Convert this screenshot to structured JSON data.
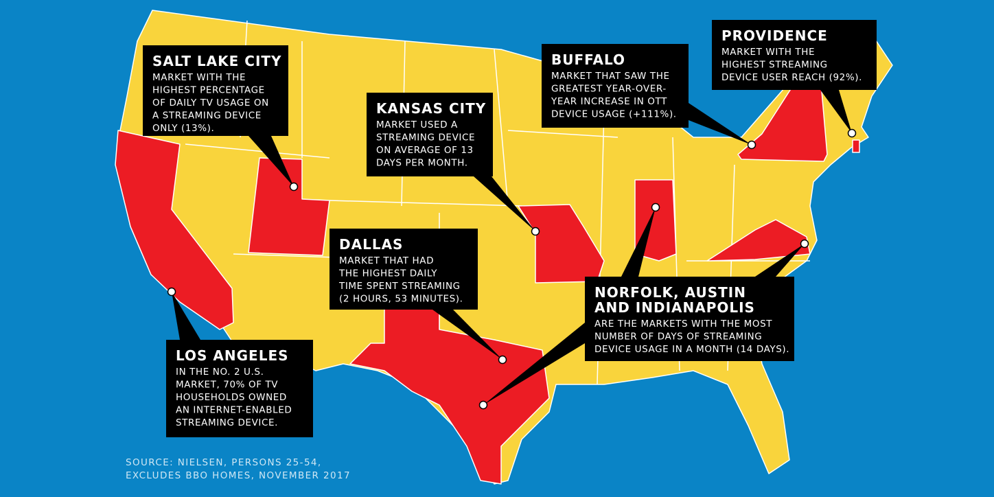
{
  "callouts": [
    {
      "title": [
        "SALT LAKE CITY"
      ],
      "lines": [
        "MARKET WITH THE",
        "HIGHEST PERCENTAGE",
        "OF DAILY TV USAGE ON",
        "A STREAMING DEVICE",
        "ONLY (13%)."
      ]
    },
    {
      "title": [
        "KANSAS CITY"
      ],
      "lines": [
        "MARKET USED A",
        "STREAMING DEVICE",
        "ON AVERAGE OF 13",
        "DAYS PER MONTH."
      ]
    },
    {
      "title": [
        "BUFFALO"
      ],
      "lines": [
        "MARKET THAT SAW THE",
        "GREATEST YEAR-OVER-",
        "YEAR INCREASE IN OTT",
        "DEVICE USAGE (+111%)."
      ]
    },
    {
      "title": [
        "PROVIDENCE"
      ],
      "lines": [
        "MARKET WITH THE",
        "HIGHEST STREAMING",
        "DEVICE USER REACH (92%)."
      ]
    },
    {
      "title": [
        "DALLAS"
      ],
      "lines": [
        "MARKET THAT HAD",
        "THE HIGHEST DAILY",
        "TIME SPENT STREAMING",
        "(2 HOURS, 53 MINUTES)."
      ]
    },
    {
      "title": [
        "LOS ANGELES"
      ],
      "lines": [
        "IN THE NO. 2 U.S.",
        "MARKET, 70% OF TV",
        "HOUSEHOLDS OWNED",
        "AN INTERNET-ENABLED",
        "STREAMING DEVICE."
      ]
    },
    {
      "title": [
        "NORFOLK, AUSTIN",
        "AND INDIANAPOLIS"
      ],
      "lines": [
        "ARE THE MARKETS WITH THE MOST",
        "NUMBER OF DAYS OF STREAMING",
        "DEVICE USAGE IN A MONTH (14 DAYS)."
      ]
    }
  ],
  "source": [
    "SOURCE: NIELSEN, PERSONS 25-54,",
    "EXCLUDES BBO HOMES, NOVEMBER 2017"
  ]
}
